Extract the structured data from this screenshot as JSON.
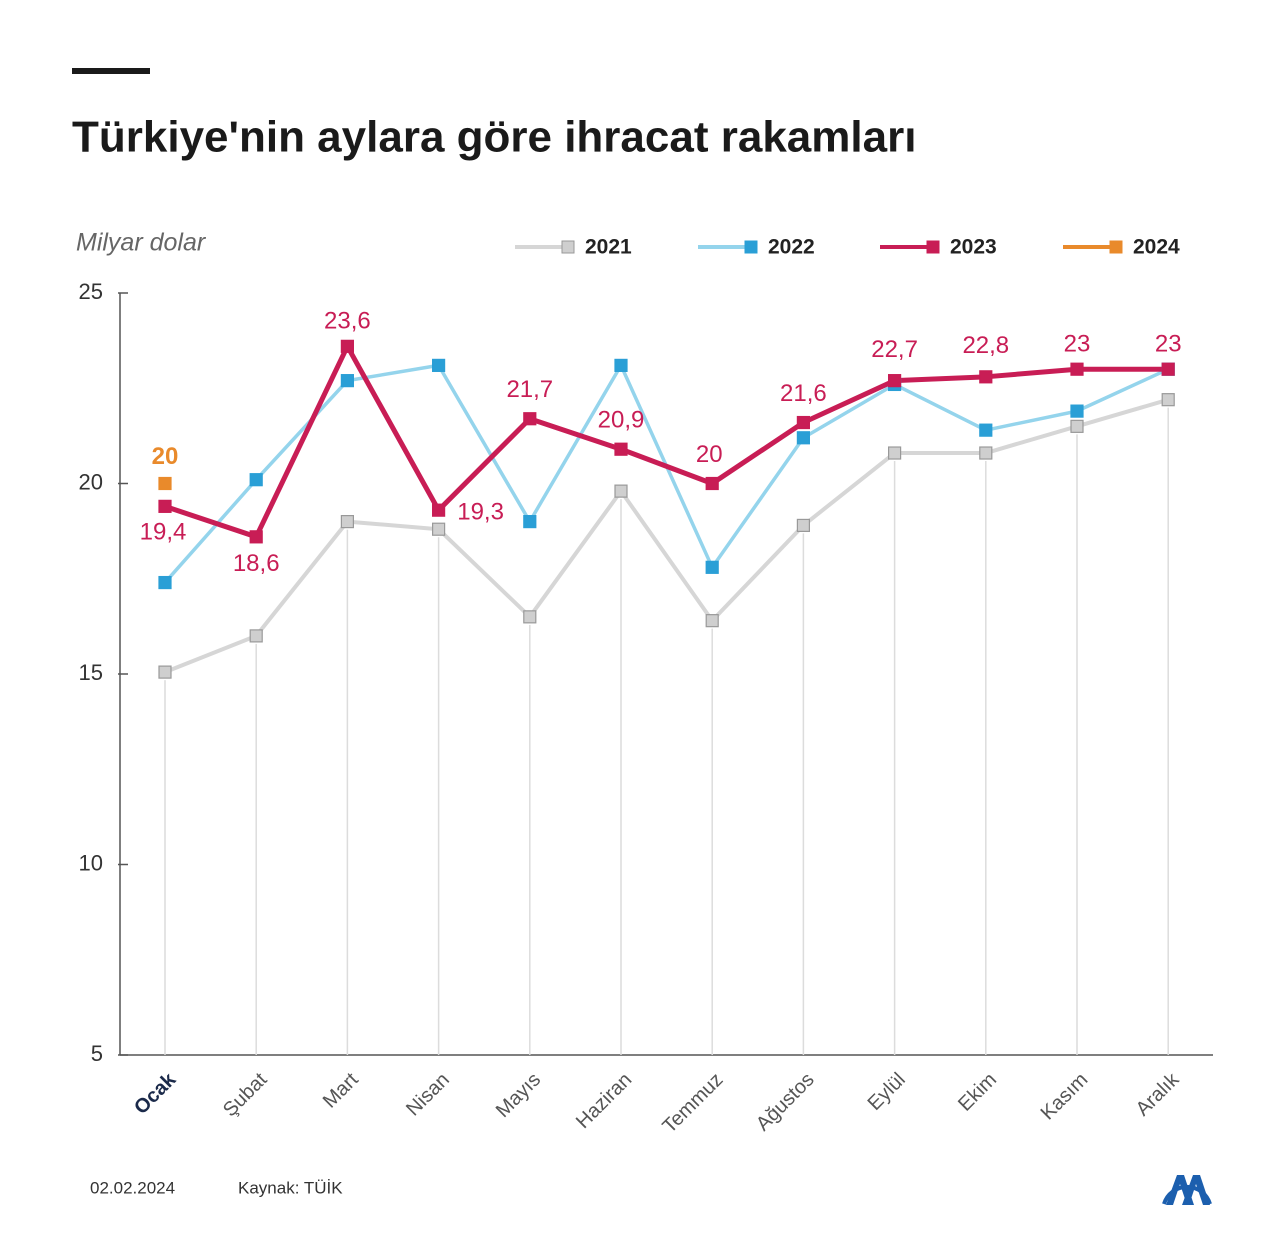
{
  "chart_data": {
    "type": "line",
    "title": "Türkiye'nin aylara göre ihracat rakamları",
    "y_label": "Milyar dolar",
    "categories": [
      "Ocak",
      "Şubat",
      "Mart",
      "Nisan",
      "Mayıs",
      "Haziran",
      "Temmuz",
      "Ağustos",
      "Eylül",
      "Ekim",
      "Kasım",
      "Aralık"
    ],
    "series": [
      {
        "name": "2021",
        "color": "#d6d6d6",
        "marker_color": "#cfcfcf",
        "values": [
          15.05,
          16.0,
          19.0,
          18.8,
          16.5,
          19.8,
          16.4,
          18.9,
          20.8,
          20.8,
          21.5,
          22.2
        ]
      },
      {
        "name": "2022",
        "color": "#94d4ec",
        "marker_color": "#2a9fd6",
        "values": [
          17.4,
          20.1,
          22.7,
          23.1,
          19.0,
          23.1,
          17.8,
          21.2,
          22.6,
          21.4,
          21.9,
          23.0
        ]
      },
      {
        "name": "2023",
        "color": "#c81d55",
        "marker_color": "#c81d55",
        "values": [
          19.4,
          18.6,
          23.6,
          19.3,
          21.7,
          20.9,
          20,
          21.6,
          22.7,
          22.8,
          23,
          23
        ],
        "value_labels": [
          "19,4",
          "18,6",
          "23,6",
          "19,3",
          "21,7",
          "20,9",
          "20",
          "21,6",
          "22,7",
          "22,8",
          "23",
          "23"
        ]
      },
      {
        "name": "2024",
        "color": "#e98a2b",
        "marker_color": "#e98a2b",
        "values": [
          20,
          null,
          null,
          null,
          null,
          null,
          null,
          null,
          null,
          null,
          null,
          null
        ],
        "value_labels": [
          "20",
          null,
          null,
          null,
          null,
          null,
          null,
          null,
          null,
          null,
          null,
          null
        ]
      }
    ],
    "ylim": [
      5,
      25
    ],
    "yticks": [
      5,
      10,
      15,
      20,
      25
    ],
    "legend": "top-right"
  },
  "footer": {
    "date": "02.02.2024",
    "source": "Kaynak: TÜİK"
  }
}
